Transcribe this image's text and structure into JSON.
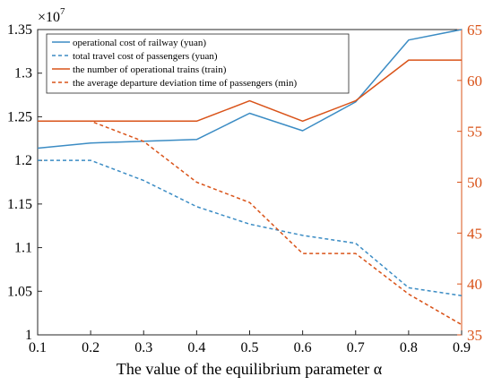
{
  "chart_data": {
    "type": "line",
    "xlabel": "The value of the equilibrium parameter α",
    "x": [
      0.1,
      0.2,
      0.3,
      0.4,
      0.5,
      0.6,
      0.7,
      0.8,
      0.9
    ],
    "xlim": [
      0.1,
      0.9
    ],
    "x_ticks": [
      "0.1",
      "0.2",
      "0.3",
      "0.4",
      "0.5",
      "0.6",
      "0.7",
      "0.8",
      "0.9"
    ],
    "y_left": {
      "lim": [
        1.0,
        1.35
      ],
      "multiplier": "×10",
      "exponent": "7",
      "ticks": [
        "1",
        "1.05",
        "1.1",
        "1.15",
        "1.2",
        "1.25",
        "1.3",
        "1.35"
      ],
      "color": "#000000"
    },
    "y_right": {
      "lim": [
        35,
        65
      ],
      "ticks": [
        "35",
        "40",
        "45",
        "50",
        "55",
        "60",
        "65"
      ],
      "color": "#D95319"
    },
    "grid": false,
    "legend_position": "top-left",
    "series": [
      {
        "name": "operational cost of railway  (yuan)",
        "axis": "left",
        "style": "solid",
        "color": "#3B8CC4",
        "values": [
          1.214,
          1.22,
          1.222,
          1.224,
          1.254,
          1.234,
          1.267,
          1.338,
          1.35
        ]
      },
      {
        "name": "total travel cost of passengers  (yuan)",
        "axis": "left",
        "style": "dashed",
        "color": "#3B8CC4",
        "values": [
          1.2,
          1.2,
          1.177,
          1.147,
          1.127,
          1.114,
          1.105,
          1.054,
          1.045
        ]
      },
      {
        "name": "the number of operational trains  (train)",
        "axis": "right",
        "style": "solid",
        "color": "#D95319",
        "values": [
          56,
          56,
          56,
          56,
          58,
          56,
          58,
          62,
          62
        ]
      },
      {
        "name": "the average departure deviation time of passengers (min)",
        "axis": "right",
        "style": "dashed",
        "color": "#D95319",
        "values": [
          56,
          56,
          54,
          50,
          48,
          43,
          43,
          39,
          36
        ]
      }
    ]
  }
}
